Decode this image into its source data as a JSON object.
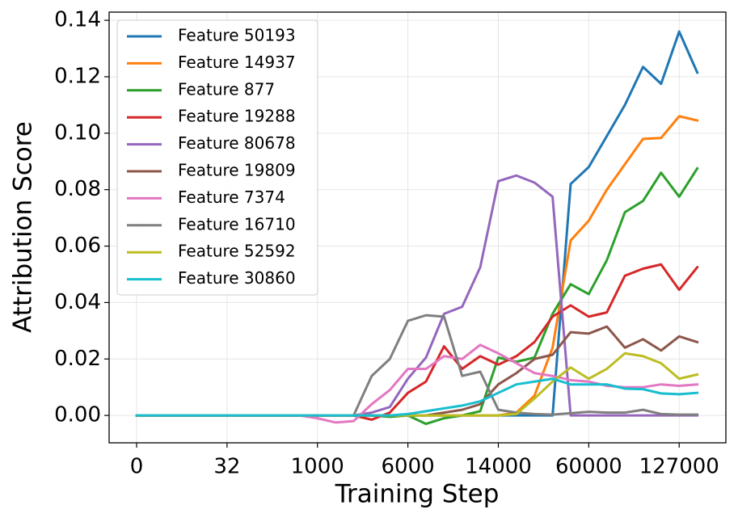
{
  "chart_data": {
    "type": "line",
    "xlabel": "Training Step",
    "ylabel": "Attribution Score",
    "categories": [
      "0",
      null,
      null,
      null,
      null,
      "32",
      null,
      null,
      null,
      null,
      "1000",
      null,
      null,
      null,
      null,
      "6000",
      null,
      null,
      null,
      null,
      "14000",
      null,
      null,
      null,
      null,
      "60000",
      null,
      null,
      null,
      null,
      "127000",
      null
    ],
    "ylim": [
      -0.0097,
      0.1429
    ],
    "yticks": [
      {
        "value": 0,
        "label": "0.00"
      },
      0.02,
      0.04,
      0.06,
      0.08,
      {
        "value": 0.1,
        "label": "0.10"
      },
      0.12,
      0.14
    ],
    "grid": true,
    "legend": "upper left",
    "series": [
      {
        "name": "Feature 50193",
        "color": "#1f77b4",
        "values": [
          0,
          0,
          0,
          0,
          0,
          0,
          0,
          0,
          0,
          0,
          0,
          0,
          0,
          0,
          0,
          0,
          0,
          0,
          0,
          0,
          0,
          0,
          0,
          0,
          0.082,
          0.088,
          0.099,
          0.11,
          0.1235,
          0.1175,
          0.136,
          0.1215
        ]
      },
      {
        "name": "Feature 14937",
        "color": "#ff7f0e",
        "values": [
          0,
          0,
          0,
          0,
          0,
          0,
          0,
          0,
          0,
          0,
          0,
          0,
          0,
          0,
          0,
          0,
          0,
          0,
          0,
          0,
          0,
          0.001,
          0.007,
          0.024,
          0.062,
          0.069,
          0.08,
          0.089,
          0.098,
          0.0983,
          0.106,
          0.1045
        ]
      },
      {
        "name": "Feature 877",
        "color": "#2ca02c",
        "values": [
          0,
          0,
          0,
          0,
          0,
          0,
          0,
          0,
          0,
          0,
          0,
          0,
          0,
          0,
          -0.0005,
          0,
          -0.003,
          -0.001,
          0,
          0.0015,
          0.0205,
          0.019,
          0.0205,
          0.036,
          0.0465,
          0.043,
          0.055,
          0.072,
          0.076,
          0.086,
          0.0775,
          0.0875
        ]
      },
      {
        "name": "Feature 19288",
        "color": "#d62728",
        "values": [
          0,
          0,
          0,
          0,
          0,
          0,
          0,
          0,
          0,
          0,
          0,
          0,
          0,
          -0.0015,
          0.001,
          0.008,
          0.012,
          0.0245,
          0.0165,
          0.021,
          0.018,
          0.021,
          0.026,
          0.035,
          0.039,
          0.035,
          0.0365,
          0.0495,
          0.052,
          0.0535,
          0.0445,
          0.0525
        ]
      },
      {
        "name": "Feature 80678",
        "color": "#9467bd",
        "values": [
          0,
          0,
          0,
          0,
          0,
          0,
          0,
          0,
          0,
          0,
          0,
          0,
          0,
          0.001,
          0.003,
          0.013,
          0.0205,
          0.036,
          0.0385,
          0.0525,
          0.083,
          0.085,
          0.0825,
          0.0775,
          0,
          0,
          0,
          0,
          0,
          0,
          0,
          0
        ]
      },
      {
        "name": "Feature 19809",
        "color": "#8c564b",
        "values": [
          0,
          0,
          0,
          0,
          0,
          0,
          0,
          0,
          0,
          0,
          0,
          0,
          0,
          0,
          0,
          0,
          0,
          0.001,
          0.002,
          0.004,
          0.011,
          0.015,
          0.02,
          0.0215,
          0.0295,
          0.029,
          0.0315,
          0.024,
          0.027,
          0.023,
          0.028,
          0.026
        ]
      },
      {
        "name": "Feature 7374",
        "color": "#e377c2",
        "values": [
          0,
          0,
          0,
          0,
          0,
          0,
          0,
          0,
          0,
          0,
          -0.001,
          -0.0025,
          -0.002,
          0.004,
          0.009,
          0.0165,
          0.0165,
          0.021,
          0.02,
          0.025,
          0.022,
          0.0185,
          0.015,
          0.014,
          0.0125,
          0.012,
          0.0105,
          0.01,
          0.01,
          0.011,
          0.0105,
          0.011
        ]
      },
      {
        "name": "Feature 16710",
        "color": "#7f7f7f",
        "values": [
          0,
          0,
          0,
          0,
          0,
          0,
          0,
          0,
          0,
          0,
          0,
          0,
          0,
          0.014,
          0.02,
          0.0335,
          0.0355,
          0.035,
          0.014,
          0.0155,
          0.002,
          0.001,
          0.0005,
          0.0003,
          0.0008,
          0.0013,
          0.001,
          0.001,
          0.002,
          0.0005,
          0.0003,
          0.0003
        ]
      },
      {
        "name": "Feature 52592",
        "color": "#bcbd22",
        "values": [
          0,
          0,
          0,
          0,
          0,
          0,
          0,
          0,
          0,
          0,
          0,
          0,
          0,
          0,
          0,
          0,
          0,
          0,
          0,
          0,
          0,
          0.0005,
          0.006,
          0.012,
          0.017,
          0.013,
          0.0165,
          0.022,
          0.021,
          0.0185,
          0.013,
          0.0145
        ]
      },
      {
        "name": "Feature 30860",
        "color": "#17becf",
        "values": [
          0,
          0,
          0,
          0,
          0,
          0,
          0,
          0,
          0,
          0,
          0,
          0,
          0,
          0,
          0,
          0.0005,
          0.0015,
          0.0025,
          0.0035,
          0.005,
          0.008,
          0.011,
          0.012,
          0.013,
          0.011,
          0.011,
          0.011,
          0.0095,
          0.0093,
          0.0078,
          0.0075,
          0.008
        ]
      }
    ]
  }
}
